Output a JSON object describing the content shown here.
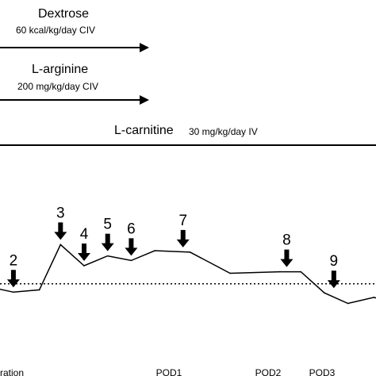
{
  "treatments": {
    "dextrose": {
      "name": "Dextrose",
      "dose": "60 kcal/kg/day CIV"
    },
    "arginine": {
      "name": "L-arginine",
      "dose": "200 mg/kg/day CIV"
    },
    "carnitine": {
      "name": "L-carnitine",
      "dose": "30 mg/kg/day IV"
    }
  },
  "chart_data": {
    "type": "line",
    "title": "",
    "xlabel": "",
    "ylabel": "",
    "grid": false,
    "x_tick_labels": [
      "ration",
      "POD1",
      "POD2",
      "POD3"
    ],
    "series": [
      {
        "values": [
          {
            "x": -0.3,
            "y": 29
          },
          {
            "x": 0.3,
            "y": 25
          },
          {
            "x": 1.4,
            "y": 28
          },
          {
            "x": 2.3,
            "y": 88
          },
          {
            "x": 3.3,
            "y": 60
          },
          {
            "x": 4.3,
            "y": 73
          },
          {
            "x": 5.3,
            "y": 67
          },
          {
            "x": 6.3,
            "y": 80
          },
          {
            "x": 7.8,
            "y": 78
          },
          {
            "x": 9.5,
            "y": 50
          },
          {
            "x": 11.6,
            "y": 52
          },
          {
            "x": 12.5,
            "y": 52
          },
          {
            "x": 13.5,
            "y": 24
          },
          {
            "x": 14.5,
            "y": 10
          },
          {
            "x": 15.6,
            "y": 18
          },
          {
            "x": 16.0,
            "y": 15
          }
        ]
      }
    ],
    "reference_line": {
      "y": 36,
      "style": "dotted"
    },
    "events": [
      {
        "label": "2",
        "x": 0.3,
        "y": 25
      },
      {
        "label": "3",
        "x": 2.3,
        "y": 88
      },
      {
        "label": "4",
        "x": 3.3,
        "y": 60
      },
      {
        "label": "5",
        "x": 4.3,
        "y": 73
      },
      {
        "label": "6",
        "x": 5.3,
        "y": 67
      },
      {
        "label": "7",
        "x": 7.5,
        "y": 78
      },
      {
        "label": "8",
        "x": 11.9,
        "y": 52
      },
      {
        "label": "9",
        "x": 13.9,
        "y": 24
      }
    ]
  }
}
